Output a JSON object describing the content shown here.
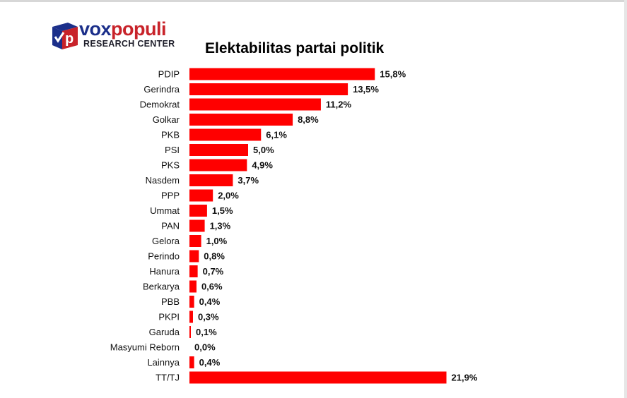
{
  "logo": {
    "word_part1": "vox",
    "word_part2": "populi",
    "subtitle": "RESEARCH CENTER",
    "colors": {
      "blue": "#1b2f8a",
      "red": "#c8232a"
    }
  },
  "chart_data": {
    "type": "bar",
    "orientation": "horizontal",
    "title": "Elektabilitas partai politik",
    "xlabel": "",
    "ylabel": "",
    "xlim": [
      0,
      22
    ],
    "grid": false,
    "legend": "none",
    "bar_color": "#ff0000",
    "categories": [
      "PDIP",
      "Gerindra",
      "Demokrat",
      "Golkar",
      "PKB",
      "PSI",
      "PKS",
      "Nasdem",
      "PPP",
      "Ummat",
      "PAN",
      "Gelora",
      "Perindo",
      "Hanura",
      "Berkarya",
      "PBB",
      "PKPI",
      "Garuda",
      "Masyumi Reborn",
      "Lainnya",
      "TT/TJ"
    ],
    "values": [
      15.8,
      13.5,
      11.2,
      8.8,
      6.1,
      5.0,
      4.9,
      3.7,
      2.0,
      1.5,
      1.3,
      1.0,
      0.8,
      0.7,
      0.6,
      0.4,
      0.3,
      0.1,
      0.0,
      0.4,
      21.9
    ],
    "value_labels": [
      "15,8%",
      "13,5%",
      "11,2%",
      "8,8%",
      "6,1%",
      "5,0%",
      "4,9%",
      "3,7%",
      "2,0%",
      "1,5%",
      "1,3%",
      "1,0%",
      "0,8%",
      "0,7%",
      "0,6%",
      "0,4%",
      "0,3%",
      "0,1%",
      "0,0%",
      "0,4%",
      "21,9%"
    ]
  }
}
